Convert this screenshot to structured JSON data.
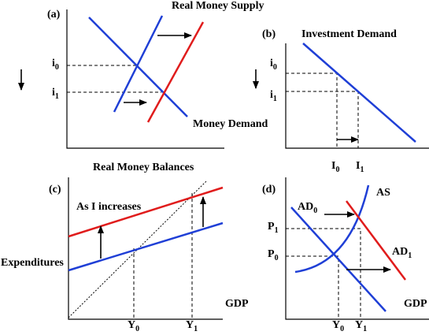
{
  "panels": [
    {
      "label": "(a)",
      "title": "Real Money Supply",
      "curve_label": "Money Demand",
      "x_axis_label": "Real Money Balances",
      "y_levels": [
        {
          "symbol": "i",
          "subscript": "0"
        },
        {
          "symbol": "i",
          "subscript": "1"
        }
      ]
    },
    {
      "label": "(b)",
      "curve_label": "Investment Demand",
      "y_levels": [
        {
          "symbol": "i",
          "subscript": "0"
        },
        {
          "symbol": "i",
          "subscript": "1"
        }
      ],
      "x_levels": [
        {
          "symbol": "I",
          "subscript": "0"
        },
        {
          "symbol": "I",
          "subscript": "1"
        }
      ]
    },
    {
      "label": "(c)",
      "annotation": "As I increases",
      "y_axis_label": "Expenditures",
      "x_axis_label": "GDP",
      "x_levels": [
        {
          "symbol": "Y",
          "subscript": "0"
        },
        {
          "symbol": "Y",
          "subscript": "1"
        }
      ]
    },
    {
      "label": "(d)",
      "supply_label": "AS",
      "x_axis_label": "GDP",
      "demand_labels": [
        {
          "symbol": "AD",
          "subscript": "0"
        },
        {
          "symbol": "AD",
          "subscript": "1"
        }
      ],
      "y_levels": [
        {
          "symbol": "P",
          "subscript": "1"
        },
        {
          "symbol": "P",
          "subscript": "0"
        }
      ],
      "x_levels": [
        {
          "symbol": "Y",
          "subscript": "0"
        },
        {
          "symbol": "Y",
          "subscript": "1"
        }
      ]
    }
  ]
}
